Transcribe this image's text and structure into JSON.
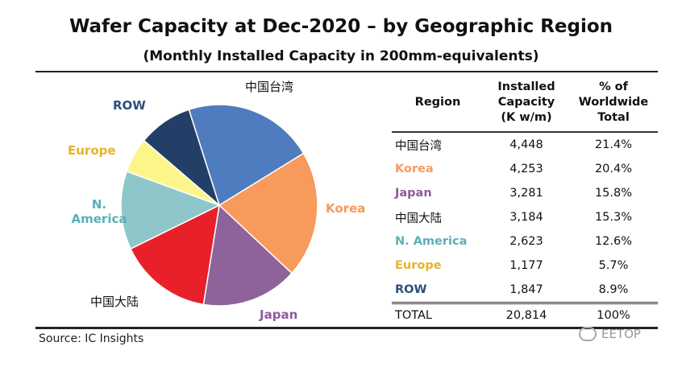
{
  "title": "Wafer Capacity at Dec-2020 – by Geographic Region",
  "subtitle": "(Monthly Installed Capacity in 200mm-equivalents)",
  "source": "Source:  IC Insights",
  "watermark": "EETOP",
  "table": {
    "headers": {
      "region": "Region",
      "capacity": "Installed Capacity (K w/m)",
      "percent": "% of Worldwide Total"
    },
    "rows": [
      {
        "region": "中国台湾",
        "capacity": "4,448",
        "percent": "21.4%",
        "color": "#111111"
      },
      {
        "region": "Korea",
        "capacity": "4,253",
        "percent": "20.4%",
        "color": "#F79A5B"
      },
      {
        "region": "Japan",
        "capacity": "3,281",
        "percent": "15.8%",
        "color": "#8E5B9E"
      },
      {
        "region": "中国大陆",
        "capacity": "3,184",
        "percent": "15.3%",
        "color": "#111111"
      },
      {
        "region": "N. America",
        "capacity": "2,623",
        "percent": "12.6%",
        "color": "#5BAFB8"
      },
      {
        "region": "Europe",
        "capacity": "1,177",
        "percent": "5.7%",
        "color": "#E5B32B"
      },
      {
        "region": "ROW",
        "capacity": "1,847",
        "percent": "8.9%",
        "color": "#2E4E7E"
      }
    ],
    "total": {
      "region": "TOTAL",
      "capacity": "20,814",
      "percent": "100%"
    }
  },
  "chart_data": {
    "type": "pie",
    "unit": "K w/m",
    "slices": [
      {
        "label": "中国台湾",
        "value": 4448,
        "percent": 21.4,
        "color": "#4F7CBE"
      },
      {
        "label": "Korea",
        "value": 4253,
        "percent": 20.4,
        "color": "#F79A5B"
      },
      {
        "label": "Japan",
        "value": 3281,
        "percent": 15.8,
        "color": "#8E639B"
      },
      {
        "label": "中国大陆",
        "value": 3184,
        "percent": 15.3,
        "color": "#E8202A"
      },
      {
        "label": "N. America",
        "value": 2623,
        "percent": 12.6,
        "color": "#8EC6C9"
      },
      {
        "label": "Europe",
        "value": 1177,
        "percent": 5.7,
        "color": "#FCF68A"
      },
      {
        "label": "ROW",
        "value": 1847,
        "percent": 8.9,
        "color": "#243F67"
      }
    ],
    "label_colors": {
      "中国台湾": "#111111",
      "Korea": "#F79A5B",
      "Japan": "#8E5B9E",
      "中国大陆": "#111111",
      "N. America": "#5BAFB8",
      "Europe": "#E5B32B",
      "ROW": "#2E4E7E"
    }
  }
}
